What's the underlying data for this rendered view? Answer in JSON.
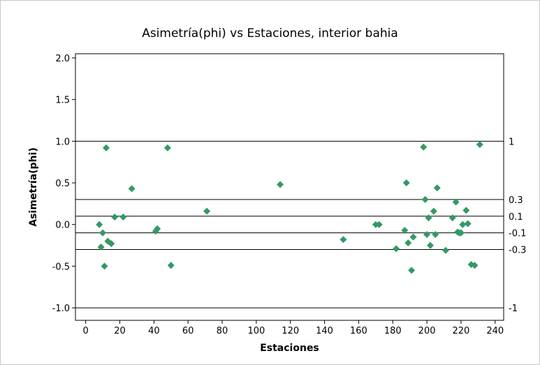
{
  "chart_data": {
    "type": "scatter",
    "title": "Asimetría(phi) vs Estaciones, interior bahia",
    "xlabel": "Estaciones",
    "ylabel": "Asimetría(phi)",
    "xlim": [
      -6,
      245
    ],
    "ylim": [
      -1.15,
      2.05
    ],
    "xticks": [
      0,
      20,
      40,
      60,
      80,
      100,
      120,
      140,
      160,
      180,
      200,
      220,
      240
    ],
    "yticks": [
      -1.0,
      -0.5,
      0.0,
      0.5,
      1.0,
      1.5,
      2.0
    ],
    "ytick_labels": [
      "-1.0",
      "-0.5",
      "0.0",
      "0.5",
      "1.0",
      "1.5",
      "2.0"
    ],
    "reference_lines": [
      {
        "value": 1,
        "label": "1"
      },
      {
        "value": 0.3,
        "label": "0.3"
      },
      {
        "value": 0.1,
        "label": "0.1"
      },
      {
        "value": -0.1,
        "label": "-0.1"
      },
      {
        "value": -0.3,
        "label": "-0.3"
      },
      {
        "value": -1,
        "label": "-1"
      }
    ],
    "grid": false,
    "marker": "diamond",
    "color": "#339966",
    "points": [
      {
        "x": 8,
        "y": 0.0
      },
      {
        "x": 9,
        "y": -0.27
      },
      {
        "x": 10,
        "y": -0.1
      },
      {
        "x": 11,
        "y": -0.5
      },
      {
        "x": 12,
        "y": 0.92
      },
      {
        "x": 13,
        "y": -0.2
      },
      {
        "x": 15,
        "y": -0.23
      },
      {
        "x": 17,
        "y": 0.09
      },
      {
        "x": 22,
        "y": 0.09
      },
      {
        "x": 27,
        "y": 0.43
      },
      {
        "x": 41,
        "y": -0.08
      },
      {
        "x": 42,
        "y": -0.05
      },
      {
        "x": 48,
        "y": 0.92
      },
      {
        "x": 50,
        "y": -0.49
      },
      {
        "x": 71,
        "y": 0.16
      },
      {
        "x": 114,
        "y": 0.48
      },
      {
        "x": 151,
        "y": -0.18
      },
      {
        "x": 170,
        "y": 0.0
      },
      {
        "x": 172,
        "y": 0.0
      },
      {
        "x": 182,
        "y": -0.29
      },
      {
        "x": 187,
        "y": -0.07
      },
      {
        "x": 188,
        "y": 0.5
      },
      {
        "x": 189,
        "y": -0.22
      },
      {
        "x": 191,
        "y": -0.55
      },
      {
        "x": 192,
        "y": -0.15
      },
      {
        "x": 198,
        "y": 0.93
      },
      {
        "x": 199,
        "y": 0.3
      },
      {
        "x": 200,
        "y": -0.12
      },
      {
        "x": 201,
        "y": 0.08
      },
      {
        "x": 202,
        "y": -0.25
      },
      {
        "x": 204,
        "y": 0.16
      },
      {
        "x": 205,
        "y": -0.12
      },
      {
        "x": 206,
        "y": 0.44
      },
      {
        "x": 211,
        "y": -0.31
      },
      {
        "x": 215,
        "y": 0.08
      },
      {
        "x": 217,
        "y": 0.27
      },
      {
        "x": 218,
        "y": -0.09
      },
      {
        "x": 219,
        "y": -0.1
      },
      {
        "x": 220,
        "y": -0.1
      },
      {
        "x": 221,
        "y": 0.0
      },
      {
        "x": 223,
        "y": 0.17
      },
      {
        "x": 224,
        "y": 0.01
      },
      {
        "x": 226,
        "y": -0.48
      },
      {
        "x": 228,
        "y": -0.49
      },
      {
        "x": 231,
        "y": 0.96
      }
    ]
  }
}
